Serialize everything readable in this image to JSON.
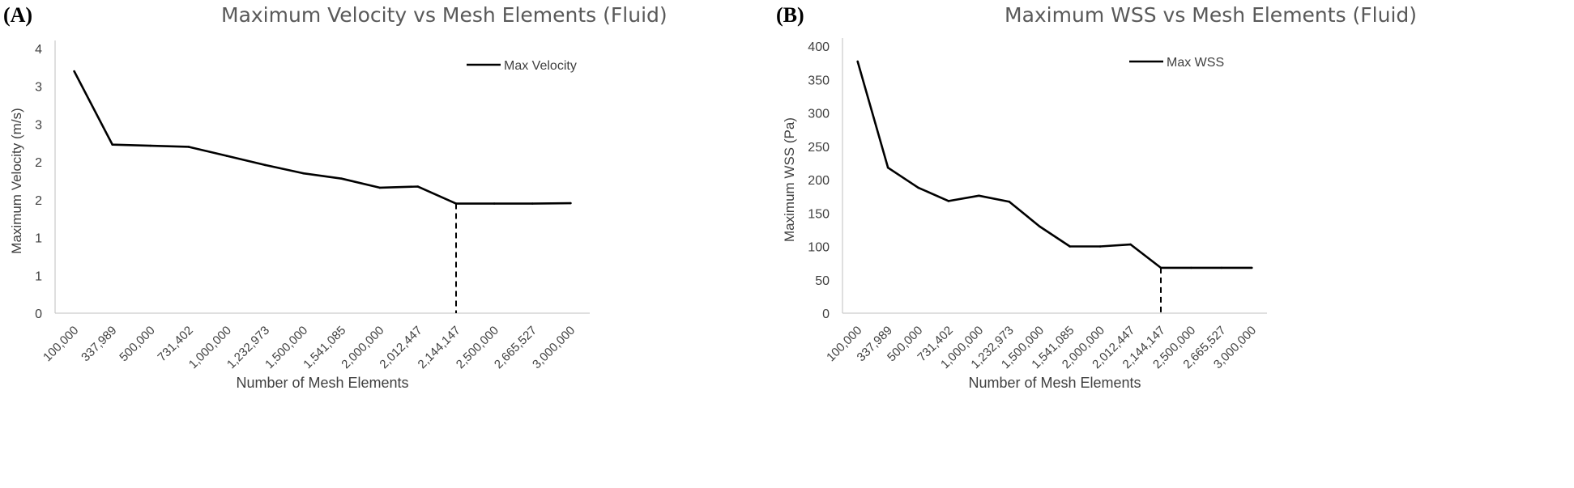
{
  "panels": [
    {
      "tag": "(A)",
      "title": "Maximum Velocity vs Mesh Elements (Fluid)",
      "chart_data": {
        "type": "line",
        "title": "Maximum Velocity vs Mesh Elements (Fluid)",
        "xlabel": "Number of Mesh Elements",
        "ylabel": "Maximum Velocity (m/s)",
        "categories": [
          "100,000",
          "337,989",
          "500,000",
          "731,402",
          "1,000,000",
          "1,232,973",
          "1,500,000",
          "1,541,085",
          "2,000,000",
          "2,012,447",
          "2,144,147",
          "2,500,000",
          "2,665,527",
          "3,000,000"
        ],
        "y_tick_labels": [
          "0",
          "1",
          "1",
          "2",
          "2",
          "3",
          "3",
          "4"
        ],
        "ylim": [
          0,
          3.5
        ],
        "series": [
          {
            "name": "Max Velocity",
            "values": [
              3.2,
              2.23,
              2.215,
              2.2,
              2.08,
              1.96,
              1.85,
              1.78,
              1.66,
              1.675,
              1.45,
              1.45,
              1.45,
              1.455
            ]
          }
        ],
        "dashed_marker_category": "2,144,147",
        "legend": "top-right",
        "grid": false
      }
    },
    {
      "tag": "(B)",
      "title": "Maximum WSS vs Mesh Elements (Fluid)",
      "chart_data": {
        "type": "line",
        "title": "Maximum WSS vs Mesh Elements (Fluid)",
        "xlabel": "Number of Mesh Elements",
        "ylabel": "Maximum WSS (Pa)",
        "categories": [
          "100,000",
          "337,989",
          "500,000",
          "731,402",
          "1,000,000",
          "1,232,973",
          "1,500,000",
          "1,541,085",
          "2,000,000",
          "2,012,447",
          "2,144,147",
          "2,500,000",
          "2,665,527",
          "3,000,000"
        ],
        "y_tick_labels": [
          "0",
          "50",
          "100",
          "150",
          "200",
          "250",
          "300",
          "350",
          "400"
        ],
        "ylim": [
          0,
          400
        ],
        "series": [
          {
            "name": "Max WSS",
            "values": [
              377,
              218,
              188,
              168,
              176,
              167,
              130,
              100,
              100,
              103,
              68,
              68,
              68,
              68
            ]
          }
        ],
        "dashed_marker_category": "2,144,147",
        "legend": "top-right",
        "grid": false
      }
    }
  ]
}
